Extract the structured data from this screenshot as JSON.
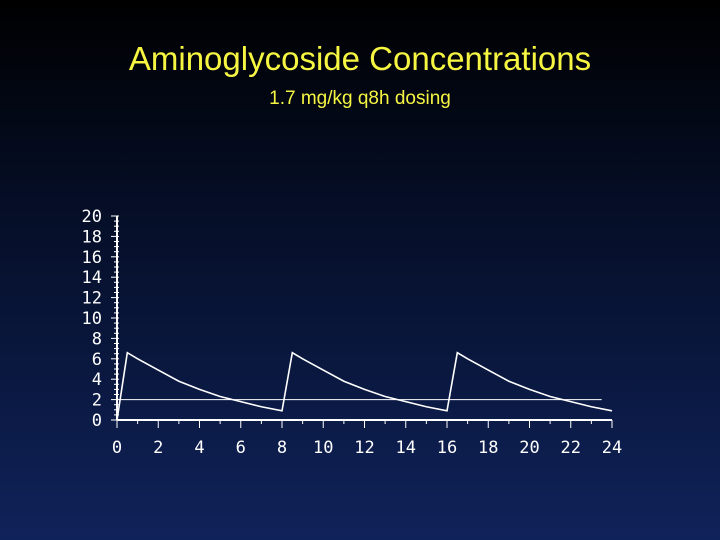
{
  "title": "Aminoglycoside Concentrations",
  "subtitle": "1.7 mg/kg q8h dosing",
  "colors": {
    "title": "#f5f542",
    "axes": "#ffffff",
    "curve": "#ffffff"
  },
  "chart_data": {
    "type": "line",
    "title": "Aminoglycoside Concentrations",
    "subtitle": "1.7 mg/kg q8h dosing",
    "xlabel": "",
    "ylabel": "",
    "xlim": [
      0,
      24
    ],
    "ylim": [
      0,
      20
    ],
    "x_ticks": [
      0,
      2,
      4,
      6,
      8,
      10,
      12,
      14,
      16,
      18,
      20,
      22,
      24
    ],
    "y_ticks": [
      0,
      2,
      4,
      6,
      8,
      10,
      12,
      14,
      16,
      18,
      20
    ],
    "grid": false,
    "series": [
      {
        "values_xy": [
          [
            0,
            0
          ],
          [
            0.5,
            6.6
          ],
          [
            1,
            6.0
          ],
          [
            2,
            4.9
          ],
          [
            3,
            3.8
          ],
          [
            4,
            3.0
          ],
          [
            5,
            2.3
          ],
          [
            6,
            1.8
          ],
          [
            7,
            1.3
          ],
          [
            8.0,
            0.9
          ],
          [
            8.5,
            6.6
          ],
          [
            9,
            6.0
          ],
          [
            10,
            4.9
          ],
          [
            11,
            3.8
          ],
          [
            12,
            3.0
          ],
          [
            13,
            2.3
          ],
          [
            14,
            1.8
          ],
          [
            15,
            1.3
          ],
          [
            16.0,
            0.9
          ],
          [
            16.5,
            6.6
          ],
          [
            17,
            6.0
          ],
          [
            18,
            4.9
          ],
          [
            19,
            3.8
          ],
          [
            20,
            3.0
          ],
          [
            21,
            2.3
          ],
          [
            22,
            1.8
          ],
          [
            23,
            1.3
          ],
          [
            24.0,
            0.9
          ]
        ]
      },
      {
        "values_xy": [
          [
            0,
            2
          ],
          [
            23.5,
            2
          ]
        ]
      }
    ]
  }
}
